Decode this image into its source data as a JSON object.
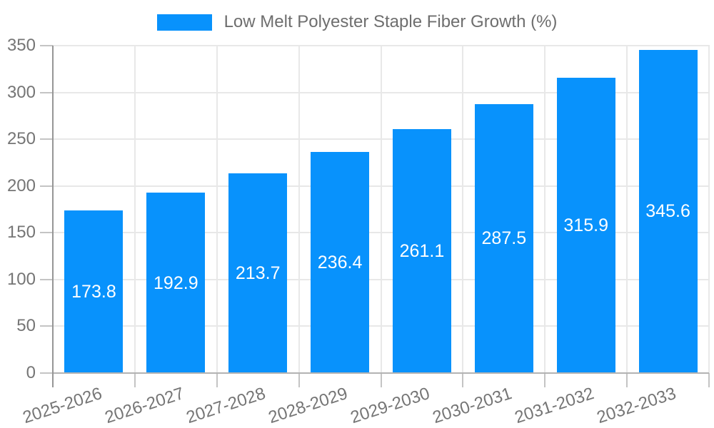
{
  "legend": {
    "label": "Low Melt Polyester Staple Fiber Growth (%)"
  },
  "chart_data": {
    "type": "bar",
    "title": "Low Melt Polyester Staple Fiber Growth (%)",
    "categories": [
      "2025-2026",
      "2026-2027",
      "2027-2028",
      "2028-2029",
      "2029-2030",
      "2030-2031",
      "2031-2032",
      "2032-2033"
    ],
    "values": [
      173.8,
      192.9,
      213.7,
      236.4,
      261.1,
      287.5,
      315.9,
      345.6
    ],
    "series": [
      {
        "name": "Low Melt Polyester Staple Fiber Growth (%)",
        "values": [
          173.8,
          192.9,
          213.7,
          236.4,
          261.1,
          287.5,
          315.9,
          345.6
        ]
      }
    ],
    "xlabel": "",
    "ylabel": "",
    "ylim": [
      0,
      350
    ],
    "ytick_step": 50,
    "yticks": [
      0,
      50,
      100,
      150,
      200,
      250,
      300,
      350
    ],
    "grid": true,
    "legend_position": "top-center",
    "bar_labels_inside": true,
    "colors": {
      "bar": "#0892FC",
      "bar_label": "#FFFFFF",
      "axis_text": "#757575",
      "title_text": "#6E6E6E",
      "grid": "#E8E8E8",
      "y_axis_line": "#969696",
      "x_axis_line": "#B3B3B3",
      "tick_mark": "#C4C4C4"
    }
  }
}
